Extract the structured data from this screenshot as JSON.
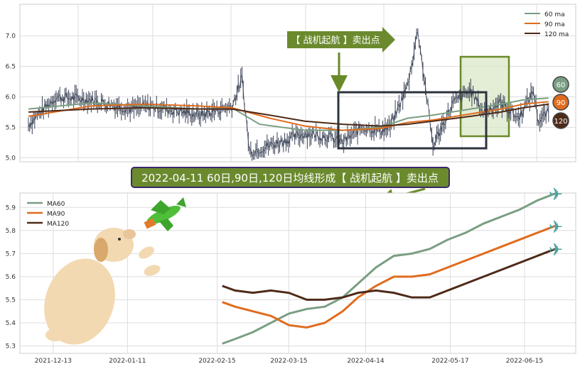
{
  "colors": {
    "ma60": "#7a9e83",
    "ma90": "#e06c1e",
    "ma120": "#4e2a18",
    "price": "#3a4256",
    "signal_box": "#2e333d",
    "highlight_border": "#6a8a2a",
    "highlight_fill": "#d8e5c5",
    "arrow": "#6a8a2a",
    "banner_bg": "#6b8a2e",
    "banner_border": "#3b2a6a"
  },
  "top_legend": [
    "60 ma",
    "90 ma",
    "120 ma"
  ],
  "bottom_legend": [
    "MA60",
    "MA90",
    "MA120"
  ],
  "signal_label": "【 战机起航 】卖出点",
  "banner_text": "2022-04-11 60日,90日,120日均线形成【 战机起航 】卖出点",
  "badges": [
    "60",
    "90",
    "120"
  ],
  "icons": {
    "dog": "puppy-illustration",
    "plane_toy": "green-plane-toy",
    "plane_marker": "airplane-emoji"
  },
  "chart_data": [
    {
      "type": "line",
      "title": "",
      "ylim": [
        4.98,
        7.45
      ],
      "yticks": [
        "5.0",
        "5.5",
        "6.0",
        "6.5",
        "7.0"
      ],
      "price_series": {
        "x": [
          "2021-11-25",
          "2021-12-06",
          "2021-12-20",
          "2022-01-05",
          "2022-01-12",
          "2022-02-01",
          "2022-02-14",
          "2022-02-18",
          "2022-02-21",
          "2022-03-01",
          "2022-03-15",
          "2022-03-24",
          "2022-03-30",
          "2022-04-07",
          "2022-04-14",
          "2022-04-18",
          "2022-04-25",
          "2022-04-29",
          "2022-05-05",
          "2022-05-13",
          "2022-05-20",
          "2022-05-25",
          "2022-06-01",
          "2022-06-08",
          "2022-06-14",
          "2022-06-16",
          "2022-06-20"
        ],
        "values": [
          5.55,
          6.0,
          5.95,
          5.8,
          5.85,
          5.7,
          5.85,
          6.3,
          5.1,
          5.2,
          5.4,
          5.35,
          5.25,
          5.5,
          5.45,
          5.5,
          6.2,
          7.1,
          5.2,
          5.9,
          6.1,
          5.75,
          5.9,
          5.65,
          6.1,
          5.6,
          5.75
        ]
      },
      "series": [
        {
          "name": "60 ma",
          "x": [
            "2021-11-25",
            "2021-12-20",
            "2022-01-10",
            "2022-02-01",
            "2022-02-14",
            "2022-02-25",
            "2022-03-15",
            "2022-03-30",
            "2022-04-14",
            "2022-04-25",
            "2022-05-05",
            "2022-05-20",
            "2022-06-01",
            "2022-06-10",
            "2022-06-20"
          ],
          "values": [
            5.8,
            5.9,
            5.85,
            5.8,
            5.82,
            5.55,
            5.45,
            5.45,
            5.5,
            5.65,
            5.7,
            5.8,
            5.88,
            5.95,
            5.98
          ]
        },
        {
          "name": "90 ma",
          "x": [
            "2021-11-25",
            "2021-12-20",
            "2022-01-10",
            "2022-02-01",
            "2022-02-14",
            "2022-03-01",
            "2022-03-15",
            "2022-03-30",
            "2022-04-14",
            "2022-04-25",
            "2022-05-05",
            "2022-05-20",
            "2022-06-01",
            "2022-06-10",
            "2022-06-20"
          ],
          "values": [
            5.68,
            5.85,
            5.88,
            5.85,
            5.82,
            5.65,
            5.52,
            5.45,
            5.48,
            5.58,
            5.62,
            5.72,
            5.8,
            5.88,
            5.92
          ]
        },
        {
          "name": "120 ma",
          "x": [
            "2021-11-25",
            "2021-12-20",
            "2022-01-10",
            "2022-02-01",
            "2022-02-14",
            "2022-03-01",
            "2022-03-15",
            "2022-03-30",
            "2022-04-14",
            "2022-04-25",
            "2022-05-05",
            "2022-05-20",
            "2022-06-01",
            "2022-06-10",
            "2022-06-20"
          ],
          "values": [
            5.75,
            5.8,
            5.82,
            5.8,
            5.8,
            5.7,
            5.6,
            5.55,
            5.52,
            5.55,
            5.6,
            5.68,
            5.75,
            5.82,
            5.88
          ]
        }
      ]
    },
    {
      "type": "line",
      "title": "",
      "ylim": [
        5.28,
        5.95
      ],
      "yticks": [
        "5.3",
        "5.4",
        "5.5",
        "5.6",
        "5.7",
        "5.8",
        "5.9"
      ],
      "xticks": [
        "2021-12-13",
        "2022-01-11",
        "2022-02-15",
        "2022-03-15",
        "2022-04-14",
        "2022-05-17",
        "2022-06-15"
      ],
      "series": [
        {
          "name": "MA60",
          "x": [
            "2022-02-17",
            "2022-02-22",
            "2022-03-01",
            "2022-03-08",
            "2022-03-15",
            "2022-03-22",
            "2022-03-29",
            "2022-04-05",
            "2022-04-11",
            "2022-04-18",
            "2022-04-25",
            "2022-05-02",
            "2022-05-09",
            "2022-05-16",
            "2022-05-23",
            "2022-05-30",
            "2022-06-06",
            "2022-06-13",
            "2022-06-20",
            "2022-06-27"
          ],
          "values": [
            5.31,
            5.33,
            5.36,
            5.4,
            5.44,
            5.46,
            5.47,
            5.51,
            5.57,
            5.64,
            5.69,
            5.7,
            5.72,
            5.76,
            5.79,
            5.83,
            5.86,
            5.89,
            5.93,
            5.96
          ]
        },
        {
          "name": "MA90",
          "x": [
            "2022-02-17",
            "2022-02-22",
            "2022-03-01",
            "2022-03-08",
            "2022-03-15",
            "2022-03-22",
            "2022-03-29",
            "2022-04-05",
            "2022-04-11",
            "2022-04-18",
            "2022-04-25",
            "2022-05-02",
            "2022-05-09",
            "2022-05-16",
            "2022-05-23",
            "2022-05-30",
            "2022-06-06",
            "2022-06-13",
            "2022-06-20",
            "2022-06-27"
          ],
          "values": [
            5.49,
            5.47,
            5.45,
            5.43,
            5.39,
            5.38,
            5.4,
            5.45,
            5.51,
            5.56,
            5.6,
            5.6,
            5.61,
            5.64,
            5.67,
            5.7,
            5.73,
            5.76,
            5.79,
            5.82
          ]
        },
        {
          "name": "MA120",
          "x": [
            "2022-02-17",
            "2022-02-22",
            "2022-03-01",
            "2022-03-08",
            "2022-03-15",
            "2022-03-22",
            "2022-03-29",
            "2022-04-05",
            "2022-04-11",
            "2022-04-18",
            "2022-04-25",
            "2022-05-02",
            "2022-05-09",
            "2022-05-16",
            "2022-05-23",
            "2022-05-30",
            "2022-06-06",
            "2022-06-13",
            "2022-06-20",
            "2022-06-27"
          ],
          "values": [
            5.56,
            5.54,
            5.53,
            5.54,
            5.53,
            5.5,
            5.5,
            5.51,
            5.53,
            5.54,
            5.53,
            5.51,
            5.51,
            5.54,
            5.57,
            5.6,
            5.63,
            5.66,
            5.69,
            5.72
          ]
        }
      ]
    }
  ]
}
